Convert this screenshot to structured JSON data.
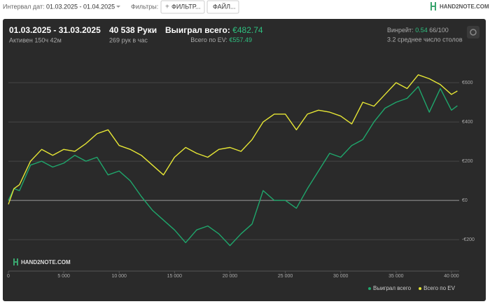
{
  "toolbar": {
    "date_label": "Интервал дат:",
    "date_range": "01.03.2025 - 01.04.2025",
    "filters_label": "Фильтры:",
    "filter_button": "ФИЛЬТР...",
    "file_button": "ФАЙЛ...",
    "logo": "HAND2NOTE.COM"
  },
  "stats": {
    "period": "01.03.2025 - 31.03.2025",
    "active": "Активен 150ч 42м",
    "hands": "40 538 Руки",
    "hands_per_hour": "269 рук в час",
    "won_label": "Выиграл всего:",
    "won_value": "€482.74",
    "ev_label": "Всего по EV:",
    "ev_value": "€557.49",
    "winrate_label": "Винрейт:",
    "winrate_value": "0.54",
    "winrate_unit": "66/100",
    "avg_tables": "3.2 среднее число столов"
  },
  "watermark": "HAND2NOTE.COM",
  "chart_data": {
    "type": "line",
    "grid": true,
    "x": [
      0,
      500,
      1000,
      2000,
      3000,
      4000,
      5000,
      6000,
      7000,
      8000,
      9000,
      10000,
      11000,
      12000,
      13000,
      14000,
      15000,
      16000,
      17000,
      18000,
      19000,
      20000,
      21000,
      22000,
      23000,
      24000,
      25000,
      26000,
      27000,
      28000,
      29000,
      30000,
      31000,
      32000,
      33000,
      34000,
      35000,
      36000,
      37000,
      38000,
      39000,
      40000,
      40538
    ],
    "series": [
      {
        "name": "Выиграл всего",
        "color": "#1fa76c",
        "values": [
          0,
          60,
          50,
          180,
          200,
          170,
          190,
          230,
          200,
          220,
          130,
          150,
          100,
          20,
          -50,
          -100,
          -150,
          -215,
          -150,
          -130,
          -170,
          -230,
          -170,
          -120,
          50,
          0,
          0,
          -40,
          60,
          150,
          240,
          220,
          280,
          310,
          400,
          470,
          500,
          520,
          580,
          450,
          570,
          460,
          482.74
        ]
      },
      {
        "name": "Всего по EV",
        "color": "#e6e635",
        "values": [
          -20,
          60,
          80,
          200,
          260,
          230,
          260,
          250,
          290,
          340,
          360,
          280,
          260,
          230,
          180,
          130,
          220,
          270,
          240,
          220,
          260,
          270,
          250,
          310,
          400,
          440,
          440,
          360,
          440,
          460,
          450,
          430,
          390,
          500,
          480,
          540,
          600,
          570,
          640,
          620,
          590,
          540,
          557.49
        ]
      }
    ],
    "xlim": [
      0,
      40700
    ],
    "xticks": [
      0,
      {
        "value": 5000,
        "label": "5 000"
      },
      {
        "value": 10000,
        "label": "10 000"
      },
      {
        "value": 15000,
        "label": "15 000"
      },
      {
        "value": 20000,
        "label": "20 000"
      },
      {
        "value": 25000,
        "label": "25 000"
      },
      {
        "value": 30000,
        "label": "30 000"
      },
      {
        "value": 35000,
        "label": "35 000"
      },
      {
        "value": 40000,
        "label": "40 000"
      }
    ],
    "ylim": [
      -360,
      750
    ],
    "yticks": [
      {
        "value": -200,
        "label": "-€200"
      },
      {
        "value": 0,
        "label": "€0"
      },
      {
        "value": 200,
        "label": "€200"
      },
      {
        "value": 400,
        "label": "€400"
      },
      {
        "value": 600,
        "label": "€600"
      }
    ]
  }
}
